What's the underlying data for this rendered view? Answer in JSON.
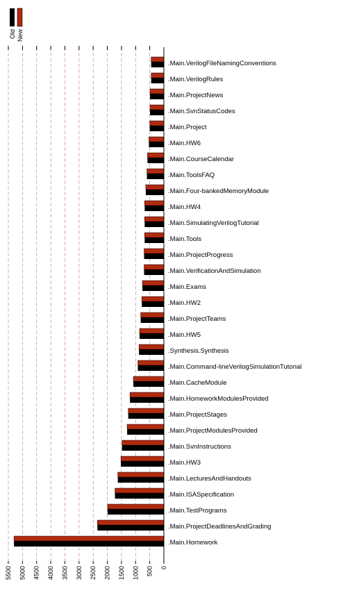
{
  "chart_data": {
    "type": "bar",
    "orientation": "horizontal",
    "x_direction": "reversed",
    "grid": "vertical dashed",
    "legend_position": "top-left",
    "xlim": [
      0,
      5500
    ],
    "xticks": [
      0,
      500,
      1000,
      1500,
      2000,
      2500,
      3000,
      3500,
      4000,
      4500,
      5000,
      5500
    ],
    "categories": [
      ".Main.VerilogFileNamingConventions",
      ".Main.VerilogRules",
      ".Main.ProjectNews",
      ".Main.SvnStatusCodes",
      ".Main.Project",
      ".Main.HW6",
      ".Main.CourseCalendar",
      ".Main.ToolsFAQ",
      ".Main.Four-bankedMemoryModule",
      ".Main.HW4",
      ".Main.SimulatingVerilogTutorial",
      ".Main.Tools",
      ".Main.ProjectProgress",
      ".Main.VerificationAndSimulation",
      ".Main.Exams",
      ".Main.HW2",
      ".Main.ProjectTeams",
      ".Main.HW5",
      ".Synthesis.Synthesis",
      ".Main.Command-lineVerilogSimulationTutorial",
      ".Main.CacheModule",
      ".Main.HomeworkModulesProvided",
      ".Main.ProjectStages",
      ".Main.ProjectModulesProvided",
      ".Main.SvnInstructions",
      ".Main.HW3",
      ".Main.LecturesAndHandouts",
      ".Main.ISASpecification",
      ".Main.TestPrograms",
      ".Main.ProjectDeadlinesAndGrading",
      ".Main.Homework"
    ],
    "series": [
      {
        "name": "Old",
        "color": "#000000",
        "values": [
          450,
          450,
          490,
          490,
          500,
          530,
          580,
          600,
          640,
          680,
          680,
          680,
          700,
          700,
          760,
          780,
          820,
          860,
          880,
          920,
          1080,
          1200,
          1260,
          1300,
          1480,
          1520,
          1630,
          1730,
          1990,
          2350,
          5300
        ]
      },
      {
        "name": "New",
        "color": "#b22a10",
        "values": [
          450,
          450,
          490,
          490,
          500,
          530,
          580,
          600,
          640,
          680,
          680,
          680,
          700,
          700,
          760,
          780,
          820,
          860,
          880,
          920,
          1080,
          1200,
          1260,
          1300,
          1480,
          1520,
          1630,
          1730,
          1990,
          2350,
          5300
        ]
      }
    ],
    "title": "",
    "xlabel": "",
    "ylabel": ""
  }
}
